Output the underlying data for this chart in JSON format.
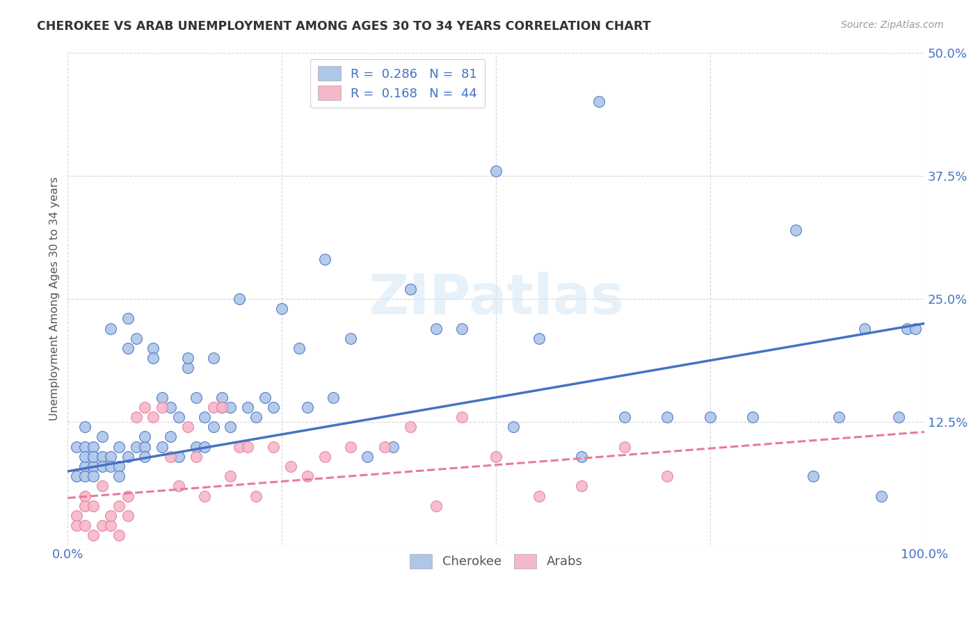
{
  "title": "CHEROKEE VS ARAB UNEMPLOYMENT AMONG AGES 30 TO 34 YEARS CORRELATION CHART",
  "source": "Source: ZipAtlas.com",
  "ylabel": "Unemployment Among Ages 30 to 34 years",
  "xlim": [
    0,
    1.0
  ],
  "ylim": [
    0,
    0.5
  ],
  "xticks": [
    0.0,
    0.25,
    0.5,
    0.75,
    1.0
  ],
  "xticklabels": [
    "0.0%",
    "",
    "",
    "",
    "100.0%"
  ],
  "yticks": [
    0.0,
    0.125,
    0.25,
    0.375,
    0.5
  ],
  "yticklabels": [
    "",
    "12.5%",
    "25.0%",
    "37.5%",
    "50.0%"
  ],
  "cherokee_R": 0.286,
  "cherokee_N": 81,
  "arab_R": 0.168,
  "arab_N": 44,
  "cherokee_color": "#aec6e8",
  "arab_color": "#f4b8c8",
  "cherokee_line_color": "#4472c4",
  "arab_line_color": "#e8799a",
  "watermark": "ZIPatlas",
  "background_color": "#ffffff",
  "legend_label_cherokee": "Cherokee",
  "legend_label_arab": "Arabs",
  "cherokee_line_x0": 0.0,
  "cherokee_line_y0": 0.075,
  "cherokee_line_x1": 1.0,
  "cherokee_line_y1": 0.225,
  "arab_line_x0": 0.0,
  "arab_line_y0": 0.048,
  "arab_line_x1": 1.0,
  "arab_line_y1": 0.115,
  "cherokee_scatter_x": [
    0.01,
    0.01,
    0.02,
    0.02,
    0.02,
    0.02,
    0.02,
    0.03,
    0.03,
    0.03,
    0.03,
    0.04,
    0.04,
    0.04,
    0.05,
    0.05,
    0.05,
    0.06,
    0.06,
    0.06,
    0.07,
    0.07,
    0.07,
    0.08,
    0.08,
    0.09,
    0.09,
    0.09,
    0.1,
    0.1,
    0.11,
    0.11,
    0.12,
    0.12,
    0.13,
    0.13,
    0.14,
    0.14,
    0.15,
    0.15,
    0.16,
    0.16,
    0.17,
    0.17,
    0.18,
    0.18,
    0.19,
    0.19,
    0.2,
    0.21,
    0.22,
    0.23,
    0.24,
    0.25,
    0.27,
    0.28,
    0.3,
    0.31,
    0.33,
    0.35,
    0.38,
    0.4,
    0.43,
    0.46,
    0.5,
    0.52,
    0.55,
    0.6,
    0.62,
    0.65,
    0.7,
    0.75,
    0.8,
    0.85,
    0.87,
    0.9,
    0.93,
    0.95,
    0.97,
    0.98,
    0.99
  ],
  "cherokee_scatter_y": [
    0.07,
    0.1,
    0.08,
    0.1,
    0.07,
    0.09,
    0.12,
    0.08,
    0.1,
    0.09,
    0.07,
    0.09,
    0.11,
    0.08,
    0.22,
    0.09,
    0.08,
    0.1,
    0.08,
    0.07,
    0.2,
    0.23,
    0.09,
    0.21,
    0.1,
    0.1,
    0.09,
    0.11,
    0.2,
    0.19,
    0.1,
    0.15,
    0.11,
    0.14,
    0.13,
    0.09,
    0.18,
    0.19,
    0.15,
    0.1,
    0.1,
    0.13,
    0.12,
    0.19,
    0.15,
    0.14,
    0.12,
    0.14,
    0.25,
    0.14,
    0.13,
    0.15,
    0.14,
    0.24,
    0.2,
    0.14,
    0.29,
    0.15,
    0.21,
    0.09,
    0.1,
    0.26,
    0.22,
    0.22,
    0.38,
    0.12,
    0.21,
    0.09,
    0.45,
    0.13,
    0.13,
    0.13,
    0.13,
    0.32,
    0.07,
    0.13,
    0.22,
    0.05,
    0.13,
    0.22,
    0.22
  ],
  "arab_scatter_x": [
    0.01,
    0.01,
    0.02,
    0.02,
    0.02,
    0.03,
    0.03,
    0.04,
    0.04,
    0.05,
    0.05,
    0.06,
    0.06,
    0.07,
    0.07,
    0.08,
    0.09,
    0.1,
    0.11,
    0.12,
    0.13,
    0.14,
    0.15,
    0.16,
    0.17,
    0.18,
    0.19,
    0.2,
    0.21,
    0.22,
    0.24,
    0.26,
    0.28,
    0.3,
    0.33,
    0.37,
    0.4,
    0.43,
    0.46,
    0.5,
    0.55,
    0.6,
    0.65,
    0.7
  ],
  "arab_scatter_y": [
    0.03,
    0.02,
    0.02,
    0.05,
    0.04,
    0.01,
    0.04,
    0.02,
    0.06,
    0.02,
    0.03,
    0.01,
    0.04,
    0.05,
    0.03,
    0.13,
    0.14,
    0.13,
    0.14,
    0.09,
    0.06,
    0.12,
    0.09,
    0.05,
    0.14,
    0.14,
    0.07,
    0.1,
    0.1,
    0.05,
    0.1,
    0.08,
    0.07,
    0.09,
    0.1,
    0.1,
    0.12,
    0.04,
    0.13,
    0.09,
    0.05,
    0.06,
    0.1,
    0.07
  ]
}
